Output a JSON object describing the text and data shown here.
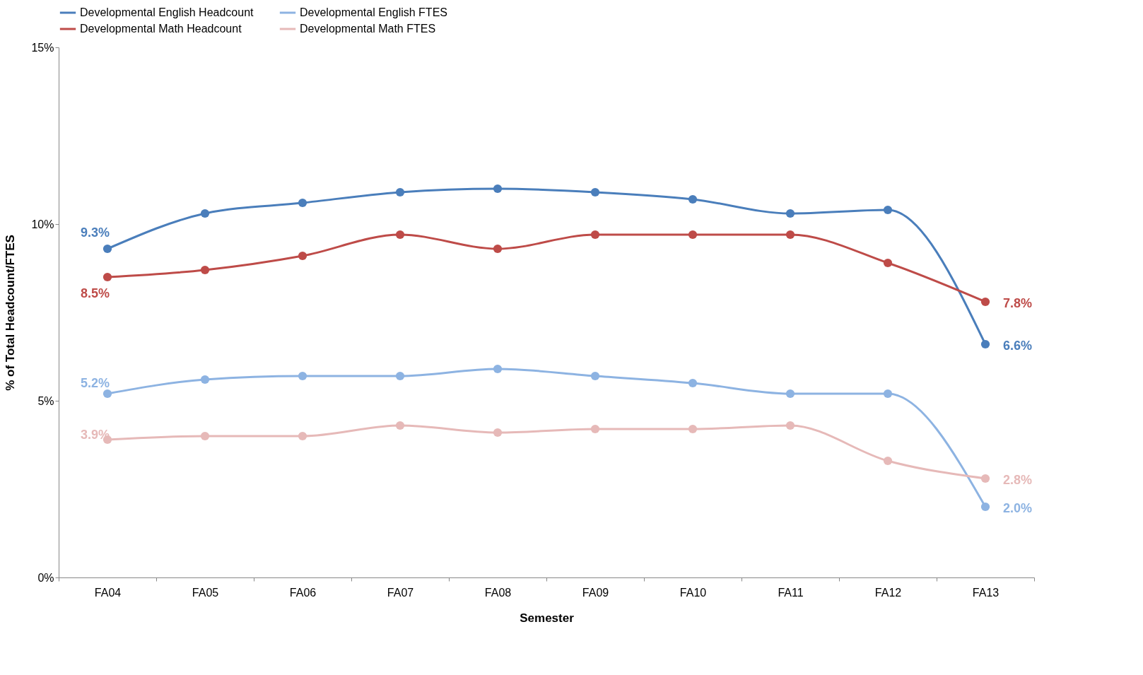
{
  "chart_data": {
    "type": "line",
    "xlabel": "Semester",
    "ylabel": "% of Total Headcount/FTES",
    "categories": [
      "FA04",
      "FA05",
      "FA06",
      "FA07",
      "FA08",
      "FA09",
      "FA10",
      "FA11",
      "FA12",
      "FA13"
    ],
    "series": [
      {
        "name": "Developmental English Headcount",
        "color": "#4a7ebb",
        "values": [
          9.3,
          10.3,
          10.6,
          10.9,
          11.0,
          10.9,
          10.7,
          10.3,
          10.4,
          6.6
        ],
        "value_labels": [
          "9.3%",
          null,
          null,
          null,
          null,
          null,
          null,
          null,
          null,
          "6.6%"
        ]
      },
      {
        "name": "Developmental English FTES",
        "color": "#8db3e2",
        "values": [
          5.2,
          5.6,
          5.7,
          5.7,
          5.9,
          5.7,
          5.5,
          5.2,
          5.2,
          2.0
        ],
        "value_labels": [
          "5.2%",
          null,
          null,
          null,
          null,
          null,
          null,
          null,
          null,
          "2.0%"
        ]
      },
      {
        "name": "Developmental Math Headcount",
        "color": "#be4b48",
        "values": [
          8.5,
          8.7,
          9.1,
          9.7,
          9.3,
          9.7,
          9.7,
          9.7,
          8.9,
          7.8
        ],
        "value_labels": [
          "8.5%",
          null,
          null,
          null,
          null,
          null,
          null,
          null,
          null,
          "7.8%"
        ]
      },
      {
        "name": "Developmental Math FTES",
        "color": "#e6b9b8",
        "values": [
          3.9,
          4.0,
          4.0,
          4.3,
          4.1,
          4.2,
          4.2,
          4.3,
          3.3,
          2.8
        ],
        "value_labels": [
          "3.9%",
          null,
          null,
          null,
          null,
          null,
          null,
          null,
          null,
          "2.8%"
        ]
      }
    ],
    "ylim": [
      0,
      15
    ],
    "yticks": [
      {
        "value": 0,
        "label": "0%"
      },
      {
        "value": 5,
        "label": "5%"
      },
      {
        "value": 10,
        "label": "10%"
      },
      {
        "value": 15,
        "label": "15%"
      }
    ],
    "grid": false,
    "legend": "top",
    "marker": "circle",
    "line_style": "solid"
  }
}
